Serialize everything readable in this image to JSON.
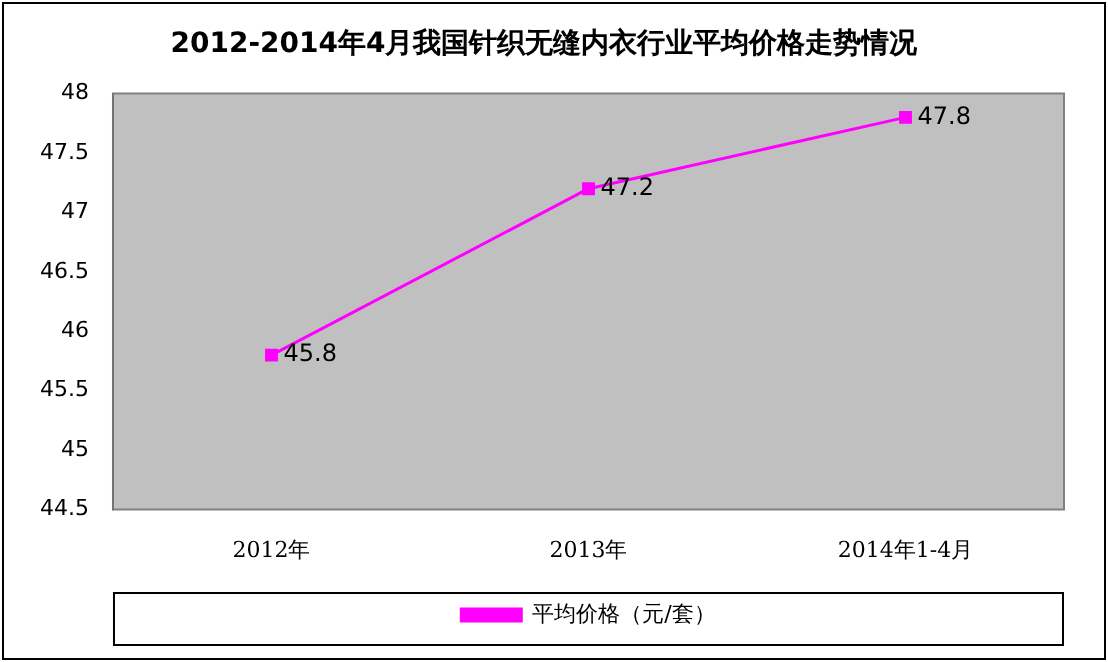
{
  "chart_data": {
    "type": "line",
    "title": "2012-2014年4月我国针织无缝内衣行业平均价格走势情况",
    "categories": [
      "2012年",
      "2013年",
      "2014年1-4月"
    ],
    "series": [
      {
        "name": "平均价格（元/套）",
        "color": "#ff00ff",
        "values": [
          45.8,
          47.2,
          47.8
        ]
      }
    ],
    "ylim": [
      44.5,
      48
    ],
    "yticks": [
      44.5,
      45,
      45.5,
      46,
      46.5,
      47,
      47.5,
      48
    ],
    "grid": false,
    "legend": "bottom",
    "marker": "square",
    "data_labels": true
  }
}
